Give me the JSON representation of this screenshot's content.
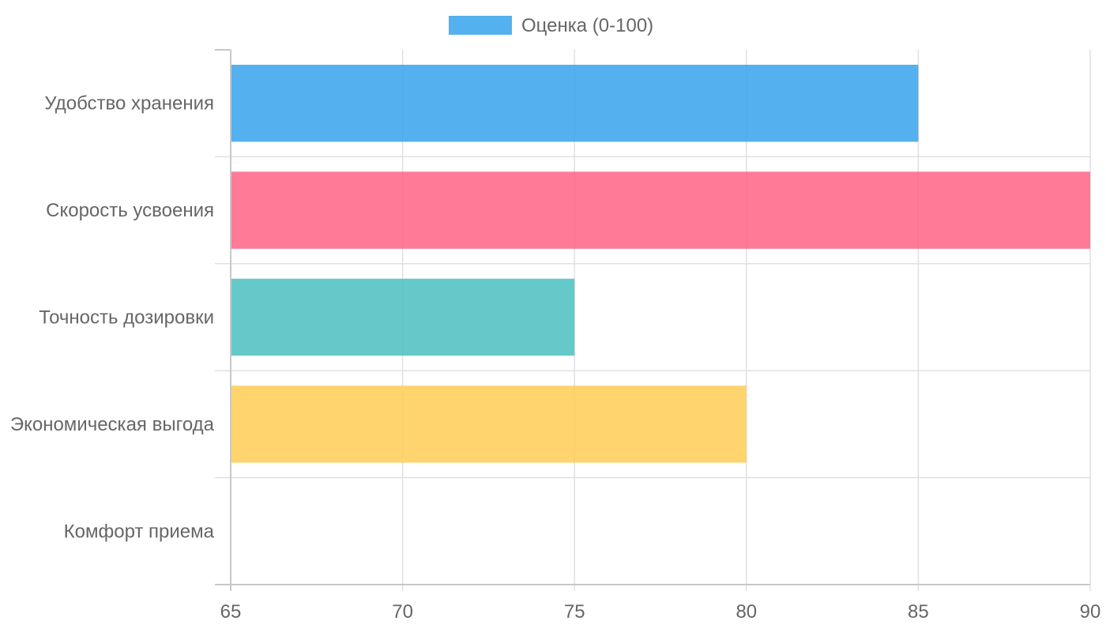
{
  "chart_data": {
    "type": "bar",
    "orientation": "horizontal",
    "categories": [
      "Удобство хранения",
      "Скорость усвоения",
      "Точность дозировки",
      "Экономическая выгода",
      "Комфорт приема"
    ],
    "series": [
      {
        "name": "Оценка (0-100)",
        "values": [
          85,
          90,
          75,
          80,
          65
        ]
      }
    ],
    "bar_colors": [
      "#36a2eb",
      "#ff6384",
      "#4bc0c0",
      "#ffcd56",
      "#9966ff"
    ],
    "legend_color": "#36a2eb",
    "xlim": [
      65,
      90
    ],
    "x_ticks": [
      "65",
      "70",
      "75",
      "80",
      "85",
      "90"
    ],
    "grid": true,
    "legend_position": "top"
  }
}
